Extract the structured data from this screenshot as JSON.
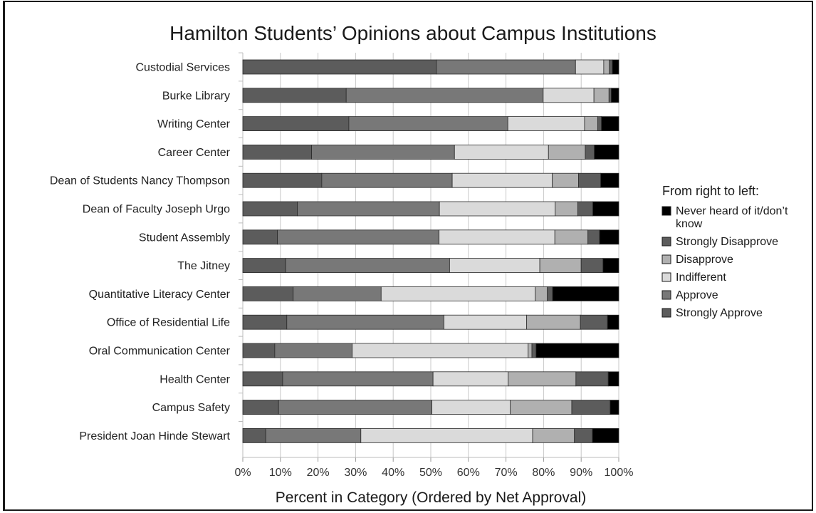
{
  "chart_data": {
    "type": "bar",
    "orientation": "horizontal",
    "stacked": true,
    "title": "Hamilton Students’ Opinions about Campus Institutions",
    "xlabel": "Percent in Category (Ordered by Net Approval)",
    "ylabel": "",
    "xlim": [
      0,
      100
    ],
    "x_ticks": [
      "0%",
      "10%",
      "20%",
      "30%",
      "40%",
      "50%",
      "60%",
      "70%",
      "80%",
      "90%",
      "100%"
    ],
    "grid": "vertical",
    "legend_position": "right",
    "legend_title": "From right to left:",
    "categories": [
      "Custodial Services",
      "Burke Library",
      "Writing Center",
      "Career Center",
      "Dean of Students Nancy Thompson",
      "Dean of Faculty Joseph Urgo",
      "Student Assembly",
      "The Jitney",
      "Quantitative Literacy Center",
      "Office of Residential Life",
      "Oral Communication Center",
      "Health Center",
      "Campus Safety",
      "President Joan Hinde Stewart"
    ],
    "series": [
      {
        "name": "Strongly Approve",
        "color": "#5c5c5c",
        "values": [
          51.5,
          27.5,
          28.2,
          18.3,
          21.0,
          14.5,
          9.2,
          11.4,
          13.4,
          11.7,
          8.5,
          10.6,
          9.5,
          6.1
        ]
      },
      {
        "name": "Approve",
        "color": "#787878",
        "values": [
          37.0,
          52.4,
          42.3,
          38.0,
          34.7,
          37.8,
          43.0,
          43.6,
          23.4,
          41.8,
          20.6,
          40.0,
          40.8,
          25.3
        ]
      },
      {
        "name": "Indifferent",
        "color": "#dadada",
        "values": [
          7.5,
          13.5,
          20.4,
          25.0,
          26.6,
          30.8,
          30.8,
          24.0,
          41.0,
          22.0,
          46.8,
          20.0,
          20.8,
          45.7
        ]
      },
      {
        "name": "Disapprove",
        "color": "#b0b0b0",
        "values": [
          1.5,
          4.0,
          3.5,
          9.8,
          7.0,
          6.0,
          8.8,
          11.0,
          3.2,
          14.3,
          1.0,
          18.0,
          16.4,
          11.1
        ]
      },
      {
        "name": "Strongly Disapprove",
        "color": "#5c5c5c",
        "values": [
          0.8,
          0.6,
          1.0,
          2.4,
          5.9,
          4.0,
          3.1,
          5.8,
          1.4,
          7.2,
          1.1,
          8.6,
          10.2,
          4.8
        ]
      },
      {
        "name": "Never heard of it/don’t know",
        "color": "#000000",
        "values": [
          1.7,
          2.0,
          4.6,
          6.5,
          4.8,
          6.9,
          5.1,
          4.2,
          17.6,
          3.0,
          22.0,
          2.8,
          2.3,
          7.0
        ]
      }
    ],
    "legend_items": [
      {
        "lines": [
          "Never heard of it/don’t",
          "know"
        ],
        "color": "#000000"
      },
      {
        "lines": [
          "Strongly Disapprove"
        ],
        "color": "#5c5c5c"
      },
      {
        "lines": [
          "Disapprove"
        ],
        "color": "#b0b0b0"
      },
      {
        "lines": [
          "Indifferent"
        ],
        "color": "#dadada"
      },
      {
        "lines": [
          "Approve"
        ],
        "color": "#787878"
      },
      {
        "lines": [
          "Strongly Approve"
        ],
        "color": "#5c5c5c"
      }
    ]
  }
}
